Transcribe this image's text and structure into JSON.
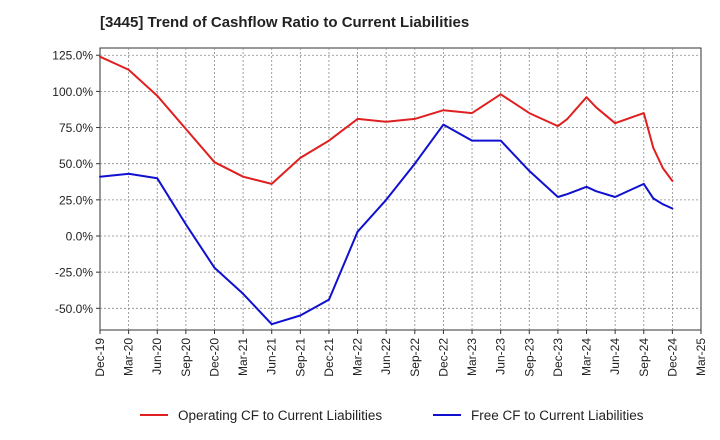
{
  "chart_data": {
    "type": "line",
    "title": "[3445]  Trend of Cashflow Ratio to Current Liabilities",
    "xlabel": "",
    "ylabel": "",
    "x_ticks": [
      "Dec-19",
      "Mar-20",
      "Jun-20",
      "Sep-20",
      "Dec-20",
      "Mar-21",
      "Jun-21",
      "Sep-21",
      "Dec-21",
      "Mar-22",
      "Jun-22",
      "Sep-22",
      "Dec-22",
      "Mar-23",
      "Jun-23",
      "Sep-23",
      "Dec-23",
      "Mar-24",
      "Jun-24",
      "Sep-24",
      "Dec-24",
      "Mar-25"
    ],
    "y_ticks": [
      "125.0%",
      "100.0%",
      "75.0%",
      "50.0%",
      "25.0%",
      "0.0%",
      "-25.0%",
      "-50.0%"
    ],
    "y_tick_values": [
      125,
      100,
      75,
      50,
      25,
      0,
      -25,
      -50
    ],
    "ylim": [
      -65,
      130
    ],
    "grid": true,
    "legend_position": "bottom",
    "x": [
      "2019-12",
      "2020-03",
      "2020-06",
      "2020-09",
      "2020-12",
      "2021-03",
      "2021-06",
      "2021-09",
      "2021-12",
      "2022-03",
      "2022-06",
      "2022-09",
      "2022-12",
      "2023-03",
      "2023-06",
      "2023-09",
      "2023-12",
      "2024-01",
      "2024-03",
      "2024-04",
      "2024-06",
      "2024-09",
      "2024-10",
      "2024-11",
      "2024-12"
    ],
    "series": [
      {
        "name": "Operating CF to Current Liabilities",
        "color": "#e02020",
        "values": [
          124,
          115,
          97,
          74,
          51,
          41,
          36,
          54,
          66,
          81,
          79,
          81,
          87,
          85,
          98,
          85,
          76,
          81,
          96,
          89,
          78,
          85,
          61,
          47,
          38
        ]
      },
      {
        "name": "Free CF to Current Liabilities",
        "color": "#1010d0",
        "values": [
          41,
          43,
          40,
          8,
          -22,
          -40,
          -61,
          -55,
          -44,
          3,
          25,
          50,
          77,
          66,
          66,
          45,
          27,
          29,
          34,
          31,
          27,
          36,
          26,
          22,
          19
        ]
      }
    ]
  }
}
